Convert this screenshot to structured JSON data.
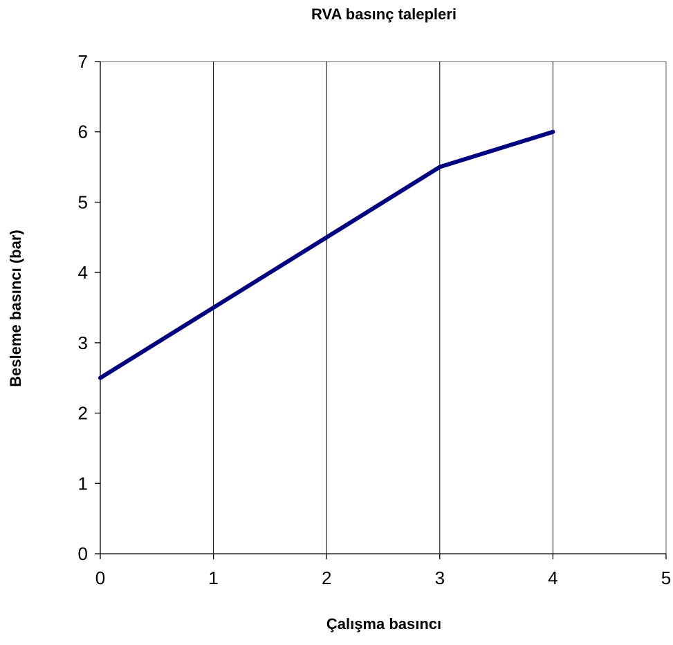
{
  "chart_data": {
    "type": "line",
    "title": "RVA basınç talepleri",
    "xlabel": "Çalışma basıncı",
    "ylabel": "Besleme basıncı (bar)",
    "xlim": [
      0,
      5
    ],
    "ylim": [
      0,
      7
    ],
    "x_ticks": [
      "0",
      "1",
      "2",
      "3",
      "4",
      "5"
    ],
    "y_ticks": [
      "0",
      "1",
      "2",
      "3",
      "4",
      "5",
      "6",
      "7"
    ],
    "grid": "vertical",
    "series": [
      {
        "x": [
          0,
          1,
          2,
          3,
          4
        ],
        "y": [
          2.5,
          3.5,
          4.5,
          5.5,
          6.0
        ],
        "color": "#000080"
      }
    ]
  }
}
